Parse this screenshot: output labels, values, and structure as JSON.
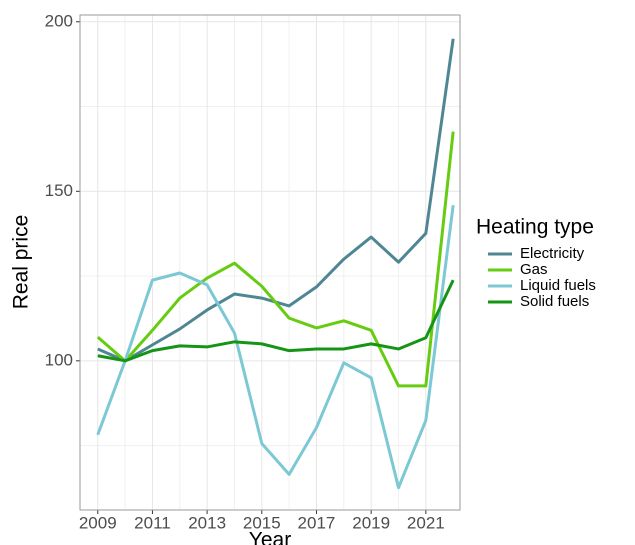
{
  "chart_data": {
    "type": "line",
    "x_label": "Year",
    "y_label": "Real price",
    "legend_title": "Heating type",
    "legend_position": "right",
    "x": [
      2009,
      2010,
      2011,
      2012,
      2013,
      2014,
      2015,
      2016,
      2017,
      2018,
      2019,
      2020,
      2021,
      2022
    ],
    "series": [
      {
        "name": "Electricity",
        "color": "#4e8793",
        "values": [
          103.5,
          100,
          104.7,
          109.4,
          115,
          119.7,
          118.5,
          116.2,
          121.8,
          130,
          136.5,
          129.1,
          137.6,
          195
        ]
      },
      {
        "name": "Gas",
        "color": "#66cc11",
        "values": [
          107,
          100,
          109,
          118.5,
          124.4,
          128.8,
          122,
          112.6,
          109.7,
          111.8,
          109,
          92.6,
          92.6,
          167.6
        ]
      },
      {
        "name": "Liquid fuels",
        "color": "#7cc8d4",
        "values": [
          78.2,
          100,
          123.8,
          125.9,
          122.4,
          108.2,
          75.6,
          66.5,
          80.3,
          99.4,
          95,
          62.6,
          82.4,
          145.9
        ]
      },
      {
        "name": "Solid fuels",
        "color": "#169416",
        "values": [
          101.5,
          100,
          103,
          104.4,
          104.1,
          105.6,
          105,
          103,
          103.5,
          103.5,
          105,
          103.5,
          106.8,
          123.8
        ]
      }
    ],
    "xlim": [
      2008.35,
      2022.25
    ],
    "xticks": [
      2009,
      2011,
      2013,
      2015,
      2017,
      2019,
      2021
    ],
    "ylim": [
      56,
      202
    ],
    "yticks": [
      100,
      150,
      200
    ],
    "grid": true
  }
}
